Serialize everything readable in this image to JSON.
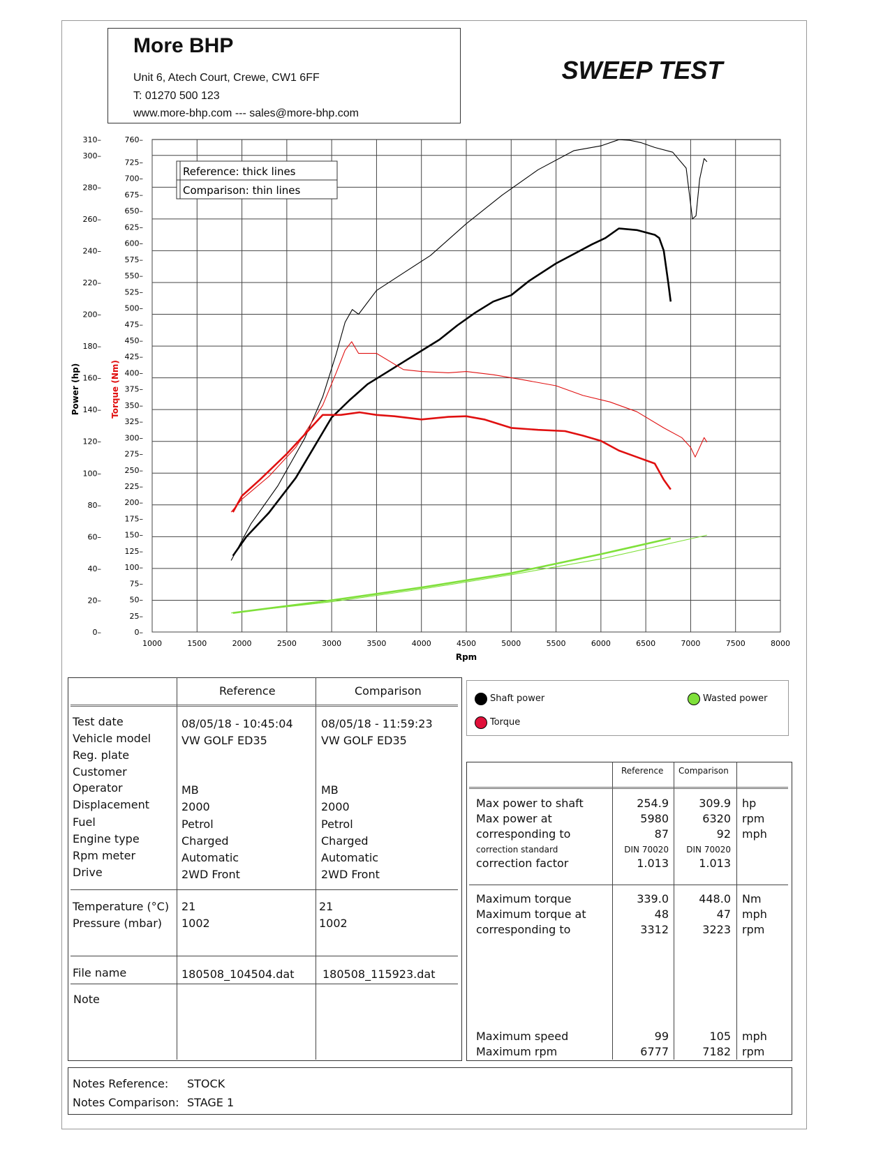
{
  "company": {
    "name": "More BHP",
    "address": "Unit 6, Atech Court, Crewe, CW1 6FF",
    "phone": "T: 01270 500 123",
    "web": "www.more-bhp.com --- sales@more-bhp.com"
  },
  "test_title": "SWEEP TEST",
  "legend_box": {
    "line1": "Reference: thick lines",
    "line2": "Comparison: thin lines"
  },
  "series_legend": {
    "shaft": "Shaft power",
    "torque": "Torque",
    "wasted": "Wasted power"
  },
  "colors": {
    "power": "#000000",
    "torque": "#e01010",
    "wasted": "#7fe03a"
  },
  "chart_data": {
    "type": "line",
    "xlabel": "Rpm",
    "ylabel_left": "Power (hp)",
    "ylabel_torque": "Torque (Nm)",
    "xlim": [
      1000,
      8000
    ],
    "ylim_power": [
      0,
      310
    ],
    "ylim_torque": [
      0,
      760
    ],
    "x_ticks": [
      "1000",
      "1500",
      "2000",
      "2500",
      "3000",
      "3500",
      "4000",
      "4500",
      "5000",
      "5500",
      "6000",
      "6500",
      "7000",
      "7500",
      "8000"
    ],
    "power_ticks": [
      "0",
      "20",
      "40",
      "60",
      "80",
      "100",
      "120",
      "140",
      "160",
      "180",
      "200",
      "220",
      "240",
      "260",
      "280",
      "300",
      "310"
    ],
    "torque_ticks": [
      "0",
      "25",
      "50",
      "75",
      "100",
      "125",
      "150",
      "175",
      "200",
      "225",
      "250",
      "275",
      "300",
      "325",
      "350",
      "375",
      "400",
      "425",
      "450",
      "475",
      "500",
      "525",
      "550",
      "575",
      "600",
      "625",
      "650",
      "675",
      "700",
      "725",
      "760"
    ],
    "grid": true,
    "series": [
      {
        "kind": "power",
        "width": "thick",
        "x": [
          1900,
          2050,
          2300,
          2600,
          2800,
          3000,
          3200,
          3400,
          3600,
          3800,
          4000,
          4200,
          4400,
          4600,
          4800,
          4900,
          5000,
          5200,
          5500,
          5700,
          5900,
          6050,
          6200,
          6400,
          6600,
          6650,
          6700,
          6750,
          6777
        ],
        "y": [
          48,
          60,
          75,
          97,
          116,
          135,
          146,
          156,
          163,
          170,
          177,
          184,
          193,
          201,
          208,
          210,
          212,
          221,
          232,
          238,
          244,
          248,
          254,
          253,
          250,
          248,
          240,
          220,
          208
        ]
      },
      {
        "kind": "power",
        "width": "thin",
        "x": [
          1880,
          2100,
          2400,
          2700,
          2900,
          3050,
          3150,
          3230,
          3300,
          3500,
          3800,
          4100,
          4500,
          4900,
          5300,
          5700,
          6000,
          6200,
          6320,
          6450,
          6600,
          6800,
          6950,
          7020,
          7060,
          7100,
          7150,
          7182
        ],
        "y": [
          45,
          68,
          92,
          122,
          148,
          175,
          195,
          203,
          200,
          215,
          226,
          237,
          257,
          275,
          291,
          303,
          306,
          309.9,
          309.5,
          308,
          305,
          302,
          292,
          260,
          262,
          285,
          298,
          296
        ]
      },
      {
        "kind": "torque",
        "width": "thick",
        "x": [
          1900,
          2000,
          2200,
          2500,
          2700,
          2900,
          3100,
          3312,
          3500,
          3700,
          4000,
          4300,
          4500,
          4700,
          5000,
          5300,
          5600,
          5800,
          6000,
          6200,
          6400,
          6600,
          6700,
          6777
        ],
        "y": [
          185,
          210,
          235,
          275,
          305,
          335,
          335,
          339,
          335,
          333,
          328,
          332,
          333,
          328,
          315,
          312,
          310,
          303,
          295,
          280,
          270,
          260,
          235,
          220
        ]
      },
      {
        "kind": "torque",
        "width": "thin",
        "x": [
          1880,
          2000,
          2300,
          2600,
          2900,
          3050,
          3150,
          3223,
          3300,
          3500,
          3800,
          4000,
          4300,
          4500,
          4800,
          5100,
          5500,
          5800,
          6100,
          6400,
          6700,
          6900,
          7000,
          7050,
          7100,
          7150,
          7182
        ],
        "y": [
          185,
          205,
          240,
          285,
          350,
          400,
          435,
          448,
          430,
          430,
          405,
          402,
          400,
          402,
          397,
          390,
          380,
          365,
          355,
          340,
          315,
          300,
          285,
          270,
          285,
          300,
          293
        ]
      },
      {
        "kind": "wasted",
        "width": "thick",
        "x": [
          1900,
          3000,
          4000,
          5000,
          6000,
          6777
        ],
        "y": [
          12,
          20,
          28,
          37,
          49,
          59
        ]
      },
      {
        "kind": "wasted",
        "width": "thin",
        "x": [
          1880,
          3000,
          4000,
          5000,
          6000,
          7182
        ],
        "y": [
          12,
          19,
          27,
          36,
          46,
          61
        ]
      }
    ]
  },
  "info_table": {
    "col_ref": "Reference",
    "col_cmp": "Comparison",
    "labels": [
      "Test date",
      "Vehicle model",
      "Reg. plate",
      "Customer",
      "Operator",
      "Displacement",
      "Fuel",
      "Engine type",
      "Rpm meter",
      "Drive"
    ],
    "ref": [
      "08/05/18 - 10:45:04",
      "VW GOLF ED35",
      "",
      "",
      "MB",
      "2000",
      "Petrol",
      "Charged",
      "Automatic",
      "2WD Front"
    ],
    "cmp": [
      "08/05/18 - 11:59:23",
      "VW GOLF ED35",
      "",
      "",
      "MB",
      "2000",
      "Petrol",
      "Charged",
      "Automatic",
      "2WD Front"
    ],
    "env_labels": [
      "Temperature (°C)",
      "Pressure (mbar)"
    ],
    "env_ref": [
      "21",
      "1002"
    ],
    "env_cmp": [
      "21",
      "1002"
    ],
    "file_label": "File name",
    "file_ref": "180508_104504.dat",
    "file_cmp": "180508_115923.dat",
    "note_label": "Note"
  },
  "results": {
    "col_ref": "Reference",
    "col_cmp": "Comparison",
    "group1": [
      {
        "label": "Max power to shaft",
        "ref": "254.9",
        "cmp": "309.9",
        "unit": "hp"
      },
      {
        "label": "Max power at",
        "ref": "5980",
        "cmp": "6320",
        "unit": "rpm"
      },
      {
        "label": "corresponding to",
        "ref": "87",
        "cmp": "92",
        "unit": "mph"
      },
      {
        "label": "correction standard",
        "ref": "DIN 70020",
        "cmp": "DIN 70020",
        "unit": "",
        "small": true
      },
      {
        "label": "correction factor",
        "ref": "1.013",
        "cmp": "1.013",
        "unit": ""
      }
    ],
    "group2": [
      {
        "label": "Maximum torque",
        "ref": "339.0",
        "cmp": "448.0",
        "unit": "Nm"
      },
      {
        "label": "Maximum torque at",
        "ref": "48",
        "cmp": "47",
        "unit": "mph"
      },
      {
        "label": "corresponding to",
        "ref": "3312",
        "cmp": "3223",
        "unit": "rpm"
      }
    ],
    "group3": [
      {
        "label": "Maximum speed",
        "ref": "99",
        "cmp": "105",
        "unit": "mph"
      },
      {
        "label": "Maximum rpm",
        "ref": "6777",
        "cmp": "7182",
        "unit": "rpm"
      }
    ]
  },
  "notes": {
    "ref_label": "Notes Reference:",
    "ref_value": "STOCK",
    "cmp_label": "Notes Comparison:",
    "cmp_value": "STAGE 1"
  }
}
